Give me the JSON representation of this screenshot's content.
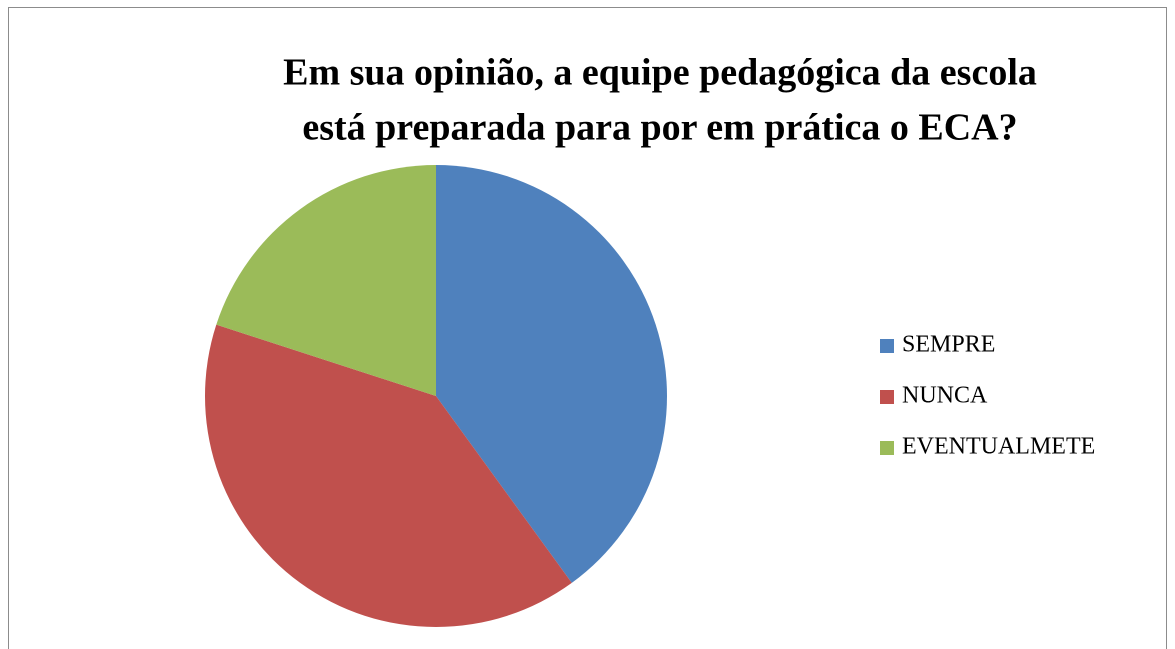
{
  "chart_data": {
    "type": "pie",
    "title": [
      "Em sua opinião, a equipe pedagógica da escola",
      "está preparada para por em prática o ECA?"
    ],
    "categories": [
      "SEMPRE",
      "NUNCA",
      "EVENTUALMETE"
    ],
    "values": [
      40,
      40,
      20
    ],
    "colors": [
      "#4f81bd",
      "#c0504d",
      "#9bbb59"
    ],
    "legend": "right"
  }
}
